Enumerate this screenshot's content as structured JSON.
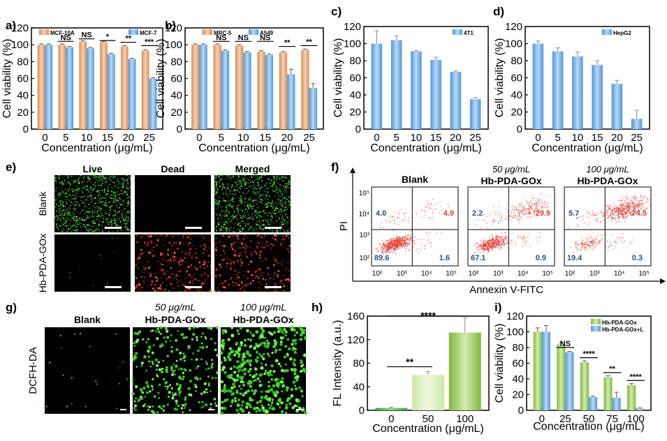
{
  "panel_labels": {
    "a": "a)",
    "b": "b)",
    "c": "c)",
    "d": "d)",
    "e": "e)",
    "f": "f)",
    "g": "g)",
    "h": "h)",
    "i": "i)"
  },
  "colors": {
    "orange": "#e2a77a",
    "blue": "#6aa8e6",
    "green": "#8bc34a",
    "lightgreen": "#c8e89b",
    "darkgreen": "#4caf50",
    "red": "#e53935",
    "sig_label": "#2f4a7a"
  },
  "chart_data": [
    {
      "id": "a",
      "type": "bar",
      "categories": [
        "0",
        "5",
        "10",
        "15",
        "20",
        "25"
      ],
      "series": [
        {
          "name": "MCF-10A",
          "values": [
            100,
            100,
            104,
            103,
            98,
            93
          ],
          "errors": [
            1,
            1,
            1,
            1,
            1,
            1
          ]
        },
        {
          "name": "MCF-7",
          "values": [
            100,
            97,
            96,
            89,
            83,
            60
          ],
          "errors": [
            1,
            1,
            1,
            1,
            1,
            1
          ]
        }
      ],
      "significance": [
        "NS",
        "NS",
        "*",
        "**",
        "***"
      ],
      "xlabel": "Concentration (μg/mL)",
      "ylabel": "Cell viability (%)",
      "ylim": [
        0,
        120
      ],
      "yticks": [
        0,
        20,
        40,
        60,
        80,
        100,
        120
      ]
    },
    {
      "id": "b",
      "type": "bar",
      "categories": [
        "0",
        "5",
        "10",
        "15",
        "20",
        "25"
      ],
      "series": [
        {
          "name": "MRC-5",
          "values": [
            100,
            100,
            99,
            92,
            91,
            94
          ],
          "errors": [
            1,
            1,
            1,
            1,
            1,
            1
          ]
        },
        {
          "name": "A549",
          "values": [
            100,
            93,
            91,
            88,
            65,
            49
          ],
          "errors": [
            1,
            1,
            1,
            1,
            6,
            5
          ]
        }
      ],
      "significance": [
        "NS",
        "NS",
        "NS",
        "**",
        "**"
      ],
      "xlabel": "Concentration (μg/mL)",
      "ylabel": "Cell viability (%)",
      "ylim": [
        0,
        120
      ],
      "yticks": [
        0,
        20,
        40,
        60,
        80,
        100,
        120
      ]
    },
    {
      "id": "c",
      "type": "bar",
      "categories": [
        "0",
        "5",
        "10",
        "15",
        "20",
        "25"
      ],
      "series": [
        {
          "name": "4T1",
          "values": [
            100,
            104,
            91,
            81,
            67,
            35
          ],
          "errors": [
            15,
            5,
            1,
            3,
            1,
            2
          ]
        }
      ],
      "xlabel": "Concentration (μg/mL)",
      "ylabel": "Cell viability (%)",
      "ylim": [
        0,
        120
      ],
      "yticks": [
        0,
        20,
        40,
        60,
        80,
        100,
        120
      ]
    },
    {
      "id": "d",
      "type": "bar",
      "categories": [
        "0",
        "5",
        "10",
        "15",
        "20",
        "25"
      ],
      "series": [
        {
          "name": "HepG2",
          "values": [
            100,
            91,
            85,
            75,
            53,
            12
          ],
          "errors": [
            3,
            4,
            5,
            5,
            4,
            10
          ]
        }
      ],
      "xlabel": "Concentration (μg/mL)",
      "ylabel": "Cell viability (%)",
      "ylim": [
        0,
        120
      ],
      "yticks": [
        0,
        20,
        40,
        60,
        80,
        100,
        120
      ]
    },
    {
      "id": "h",
      "type": "bar",
      "categories": [
        "0",
        "50",
        "100"
      ],
      "series": [
        {
          "name": "FL",
          "values": [
            4,
            60,
            132
          ],
          "errors": [
            1,
            6,
            25
          ]
        }
      ],
      "significance": [
        "**",
        "****"
      ],
      "xlabel": "Concentration (μg/mL)",
      "ylabel": "FL Intensity (a.u.)",
      "ylim": [
        0,
        160
      ],
      "yticks": [
        0,
        40,
        80,
        120,
        160
      ]
    },
    {
      "id": "i",
      "type": "bar",
      "categories": [
        "0",
        "25",
        "50",
        "75",
        "100"
      ],
      "series": [
        {
          "name": "Hb-PDA-GOx",
          "values": [
            100,
            84,
            61,
            42,
            32
          ],
          "errors": [
            5,
            2,
            2,
            2,
            2
          ]
        },
        {
          "name": "Hb-PDA-GOx+L",
          "values": [
            100,
            74,
            17,
            16,
            2
          ],
          "errors": [
            8,
            1,
            1,
            7,
            1
          ]
        }
      ],
      "significance": [
        "NS",
        "****",
        "**",
        "****"
      ],
      "xlabel": "Concentration (μg/mL)",
      "ylabel": "Cell viability (%)",
      "ylim": [
        0,
        120
      ],
      "yticks": [
        0,
        20,
        40,
        60,
        80,
        100,
        120
      ]
    },
    {
      "id": "f",
      "type": "scatter",
      "xlabel": "Annexin V-FITC",
      "ylabel": "PI",
      "ticks": [
        "10²",
        "10³",
        "10⁴",
        "10⁵"
      ],
      "plots": [
        {
          "title": "Blank",
          "subtitle": "",
          "quadrants": {
            "ul": "4.0",
            "ur": "4.9",
            "ll": "89.6",
            "lr": "1.6"
          }
        },
        {
          "title": "Hb-PDA-GOx",
          "subtitle": "50 μg/mL",
          "quadrants": {
            "ul": "2.2",
            "ur": "29.9",
            "ll": "67.1",
            "lr": "0.9"
          }
        },
        {
          "title": "Hb-PDA-GOx",
          "subtitle": "100 μg/mL",
          "quadrants": {
            "ul": "5.7",
            "ur": "74.5",
            "ll": "19.4",
            "lr": "0.3"
          }
        }
      ]
    }
  ],
  "panel_e": {
    "columns": [
      "Live",
      "Dead",
      "Merged"
    ],
    "rows": [
      "Blank",
      "Hb-PDA-GOx"
    ]
  },
  "panel_g": {
    "row_label": "DCFH-DA",
    "columns": [
      {
        "subtitle": "",
        "title": "Blank"
      },
      {
        "subtitle": "50 μg/mL",
        "title": "Hb-PDA-GOx"
      },
      {
        "subtitle": "100 μg/mL",
        "title": "Hb-PDA-GOx"
      }
    ]
  }
}
